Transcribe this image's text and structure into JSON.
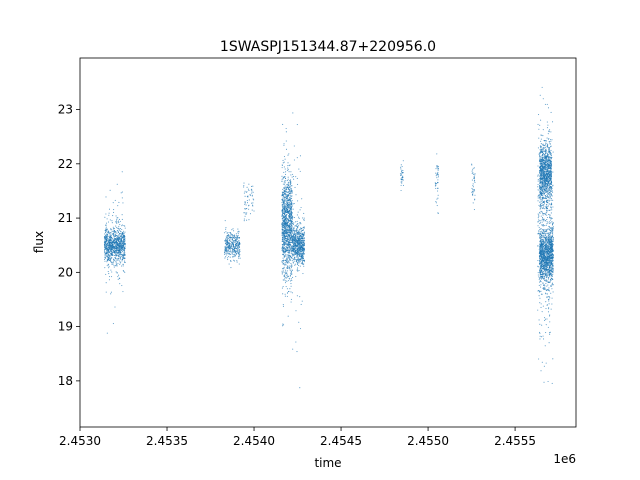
{
  "chart_data": {
    "type": "scatter",
    "title": "1SWASPJ151344.87+220956.0",
    "xlabel": "time",
    "ylabel": "flux",
    "x_offset_label": "1e6",
    "xlim": [
      2.453,
      2.45585
    ],
    "ylim": [
      17.15,
      23.95
    ],
    "x_ticks": [
      2.453,
      2.4535,
      2.454,
      2.4545,
      2.455,
      2.4555
    ],
    "x_tick_labels": [
      "2.4530",
      "2.4535",
      "2.4540",
      "2.4545",
      "2.4550",
      "2.4555"
    ],
    "y_ticks": [
      18,
      19,
      20,
      21,
      22,
      23
    ],
    "y_tick_labels": [
      "18",
      "19",
      "20",
      "21",
      "22",
      "23"
    ],
    "grid": false,
    "legend": false,
    "marker_color": "#1f77b4",
    "series": [
      {
        "values_summary": "photometric flux samples clustered in observing seasons",
        "clusters": [
          {
            "x_range": [
              2.45314,
              2.45326
            ],
            "y_center": 20.5,
            "y_spread": 0.25,
            "count": 900
          },
          {
            "x_range": [
              2.45314,
              2.45326
            ],
            "y_center": 20.5,
            "y_spread": 0.9,
            "count": 120
          },
          {
            "x_range": [
              2.45383,
              2.45392
            ],
            "y_center": 20.5,
            "y_spread": 0.22,
            "count": 350
          },
          {
            "x_range": [
              2.45394,
              2.454
            ],
            "y_center": 21.3,
            "y_spread": 0.35,
            "count": 60
          },
          {
            "x_range": [
              2.45416,
              2.45422
            ],
            "y_center": 20.9,
            "y_spread": 0.75,
            "count": 1100
          },
          {
            "x_range": [
              2.45422,
              2.45429
            ],
            "y_center": 20.5,
            "y_spread": 0.3,
            "count": 650
          },
          {
            "x_range": [
              2.45416,
              2.45428
            ],
            "y_center": 20.6,
            "y_spread": 1.5,
            "count": 160
          },
          {
            "x_range": [
              2.45484,
              2.45486
            ],
            "y_center": 21.8,
            "y_spread": 0.2,
            "count": 35
          },
          {
            "x_range": [
              2.45504,
              2.45506
            ],
            "y_center": 21.7,
            "y_spread": 0.4,
            "count": 45
          },
          {
            "x_range": [
              2.45525,
              2.45527
            ],
            "y_center": 21.6,
            "y_spread": 0.3,
            "count": 40
          },
          {
            "x_range": [
              2.45564,
              2.45571
            ],
            "y_center": 21.8,
            "y_spread": 0.45,
            "count": 1000
          },
          {
            "x_range": [
              2.45564,
              2.45572
            ],
            "y_center": 20.3,
            "y_spread": 0.4,
            "count": 1100
          },
          {
            "x_range": [
              2.45563,
              2.45572
            ],
            "y_center": 20.8,
            "y_spread": 1.6,
            "count": 500
          }
        ]
      }
    ]
  }
}
